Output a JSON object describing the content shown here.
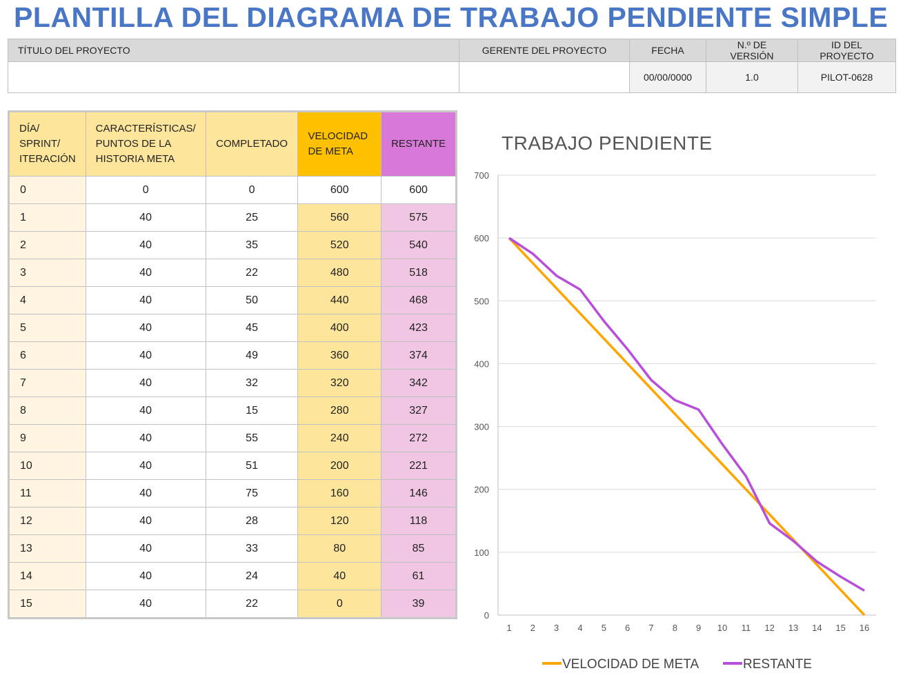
{
  "title": "PLANTILLA DEL DIAGRAMA DE TRABAJO PENDIENTE SIMPLE",
  "project_header": {
    "labels": [
      "TÍTULO DEL PROYECTO",
      "GERENTE DEL PROYECTO",
      "FECHA",
      "N.º DE VERSIÓN",
      "ID DEL PROYECTO"
    ],
    "values": [
      "",
      "",
      "00/00/0000",
      "1.0",
      "PILOT-0628"
    ]
  },
  "table": {
    "headers": [
      "DÍA/ SPRINT/ ITERACIÓN",
      "CARACTERÍSTICAS/ PUNTOS DE LA HISTORIA META",
      "COMPLETADO",
      "VELOCIDAD DE META",
      "RESTANTE"
    ],
    "rows": [
      [
        "0",
        "0",
        "0",
        "600",
        "600"
      ],
      [
        "1",
        "40",
        "25",
        "560",
        "575"
      ],
      [
        "2",
        "40",
        "35",
        "520",
        "540"
      ],
      [
        "3",
        "40",
        "22",
        "480",
        "518"
      ],
      [
        "4",
        "40",
        "50",
        "440",
        "468"
      ],
      [
        "5",
        "40",
        "45",
        "400",
        "423"
      ],
      [
        "6",
        "40",
        "49",
        "360",
        "374"
      ],
      [
        "7",
        "40",
        "32",
        "320",
        "342"
      ],
      [
        "8",
        "40",
        "15",
        "280",
        "327"
      ],
      [
        "9",
        "40",
        "55",
        "240",
        "272"
      ],
      [
        "10",
        "40",
        "51",
        "200",
        "221"
      ],
      [
        "11",
        "40",
        "75",
        "160",
        "146"
      ],
      [
        "12",
        "40",
        "28",
        "120",
        "118"
      ],
      [
        "13",
        "40",
        "33",
        "80",
        "85"
      ],
      [
        "14",
        "40",
        "24",
        "40",
        "61"
      ],
      [
        "15",
        "40",
        "22",
        "0",
        "39"
      ]
    ]
  },
  "chart_data": {
    "type": "line",
    "title": "TRABAJO PENDIENTE",
    "x": [
      1,
      2,
      3,
      4,
      5,
      6,
      7,
      8,
      9,
      10,
      11,
      12,
      13,
      14,
      15,
      16
    ],
    "ylim": [
      0,
      700
    ],
    "yticks": [
      0,
      100,
      200,
      300,
      400,
      500,
      600,
      700
    ],
    "grid": true,
    "legend": "bottom",
    "series": [
      {
        "name": "VELOCIDAD DE META",
        "color": "#ffa500",
        "values": [
          600,
          560,
          520,
          480,
          440,
          400,
          360,
          320,
          280,
          240,
          200,
          160,
          120,
          80,
          40,
          0
        ]
      },
      {
        "name": "RESTANTE",
        "color": "#b84fd8",
        "values": [
          600,
          575,
          540,
          518,
          468,
          423,
          374,
          342,
          327,
          272,
          221,
          146,
          118,
          85,
          61,
          39
        ]
      }
    ]
  }
}
